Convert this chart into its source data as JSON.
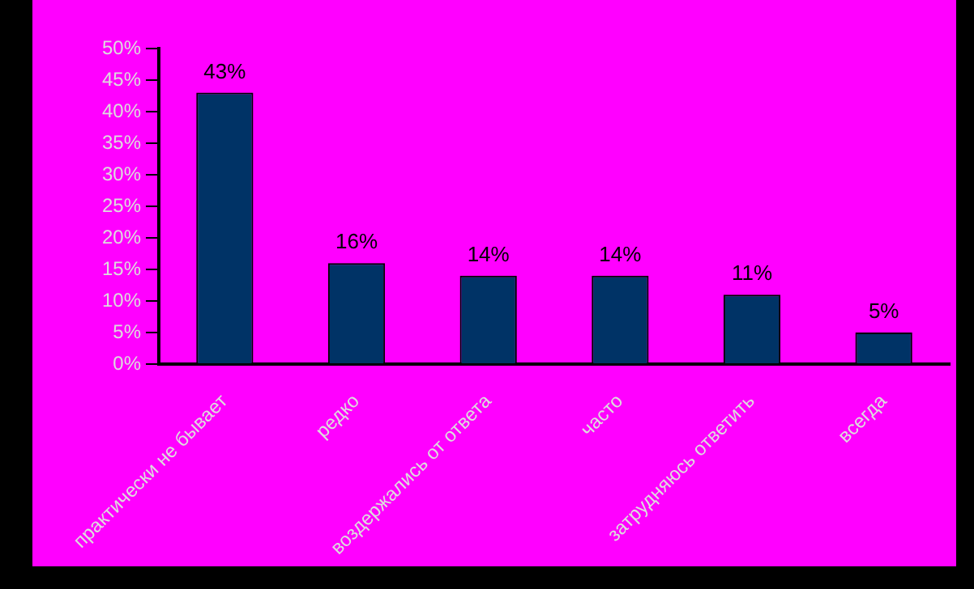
{
  "chart_data": {
    "type": "bar",
    "categories": [
      "практически не бывает",
      "редко",
      "воздержались от ответа",
      "часто",
      "затрудняюсь ответить",
      "всегда"
    ],
    "values": [
      43,
      16,
      14,
      14,
      11,
      5
    ],
    "value_labels": [
      "43%",
      "16%",
      "14%",
      "14%",
      "11%",
      "5%"
    ],
    "color": "#003366",
    "ylim": [
      0,
      50
    ],
    "yticks": [
      {
        "value": 0,
        "label": "0%"
      },
      {
        "value": 5,
        "label": "5%"
      },
      {
        "value": 10,
        "label": "10%"
      },
      {
        "value": 15,
        "label": "15%"
      },
      {
        "value": 20,
        "label": "20%"
      },
      {
        "value": 25,
        "label": "25%"
      },
      {
        "value": 30,
        "label": "30%"
      },
      {
        "value": 35,
        "label": "35%"
      },
      {
        "value": 40,
        "label": "40%"
      },
      {
        "value": 45,
        "label": "45%"
      },
      {
        "value": 50,
        "label": "50%"
      }
    ],
    "grid": false,
    "legend": false
  }
}
